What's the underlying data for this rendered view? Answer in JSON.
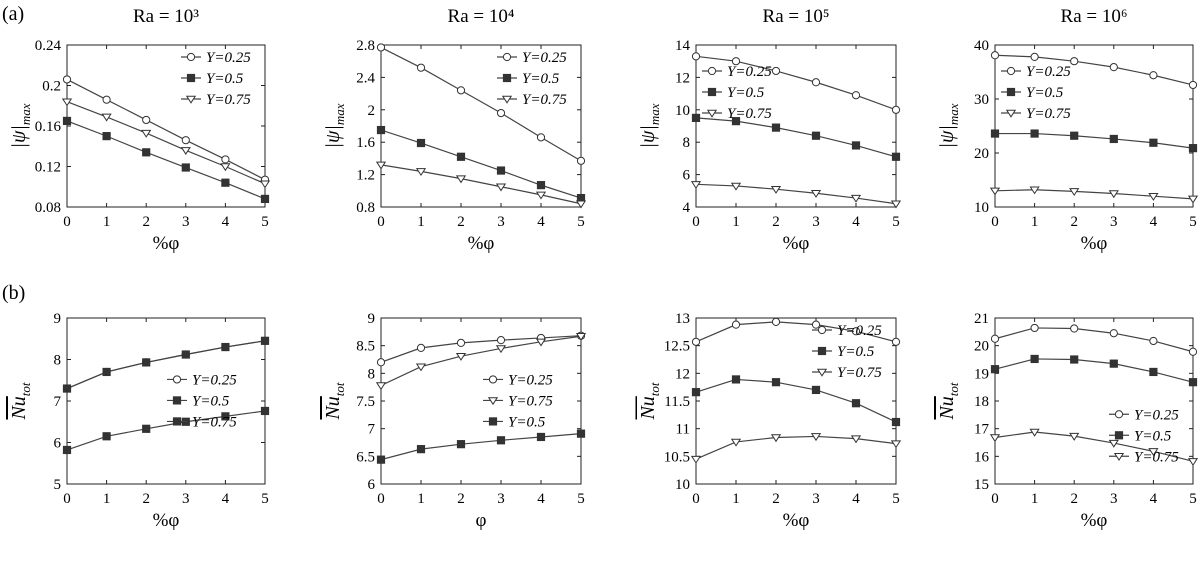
{
  "row_labels": [
    "(a)",
    "(b)"
  ],
  "titles": [
    "Ra = 10³",
    "Ra = 10⁴",
    "Ra = 10⁵",
    "Ra = 10⁶"
  ],
  "chart_data": [
    {
      "type": "line",
      "row": 0,
      "col": 0,
      "title": "Ra = 10³",
      "xlabel": "%φ",
      "ylabel": "|ψ|max",
      "x": [
        0,
        1,
        2,
        3,
        4,
        5
      ],
      "xlim": [
        0,
        5
      ],
      "ylim": [
        0.08,
        0.24
      ],
      "xticks": [
        "0",
        "1",
        "2",
        "3",
        "4",
        "5"
      ],
      "yticks": [
        "0.08",
        "0.12",
        "0.16",
        "0.2",
        "0.24"
      ],
      "legend": "top-right",
      "series": [
        {
          "name": "Y=0.25",
          "marker": "circle",
          "values": [
            0.206,
            0.186,
            0.166,
            0.146,
            0.127,
            0.107
          ]
        },
        {
          "name": "Y=0.5",
          "marker": "square",
          "values": [
            0.165,
            0.15,
            0.134,
            0.119,
            0.104,
            0.088
          ]
        },
        {
          "name": "Y=0.75",
          "marker": "triangle",
          "values": [
            0.184,
            0.169,
            0.153,
            0.136,
            0.12,
            0.103
          ]
        }
      ]
    },
    {
      "type": "line",
      "row": 0,
      "col": 1,
      "title": "Ra = 10⁴",
      "xlabel": "%φ",
      "ylabel": "|ψ|max",
      "x": [
        0,
        1,
        2,
        3,
        4,
        5
      ],
      "xlim": [
        0,
        5
      ],
      "ylim": [
        0.8,
        2.8
      ],
      "xticks": [
        "0",
        "1",
        "2",
        "3",
        "4",
        "5"
      ],
      "yticks": [
        "0.8",
        "1.2",
        "1.6",
        "2",
        "2.4",
        "2.8"
      ],
      "legend": "top-right",
      "series": [
        {
          "name": "Y=0.25",
          "marker": "circle",
          "values": [
            2.77,
            2.52,
            2.24,
            1.96,
            1.66,
            1.37
          ]
        },
        {
          "name": "Y=0.5",
          "marker": "square",
          "values": [
            1.75,
            1.59,
            1.42,
            1.25,
            1.07,
            0.91
          ]
        },
        {
          "name": "Y=0.75",
          "marker": "triangle",
          "values": [
            1.32,
            1.24,
            1.15,
            1.05,
            0.95,
            0.84
          ]
        }
      ]
    },
    {
      "type": "line",
      "row": 0,
      "col": 2,
      "title": "Ra = 10⁵",
      "xlabel": "%φ",
      "ylabel": "|ψ|max",
      "x": [
        0,
        1,
        2,
        3,
        4,
        5
      ],
      "xlim": [
        0,
        5
      ],
      "ylim": [
        4,
        14
      ],
      "xticks": [
        "0",
        "1",
        "2",
        "3",
        "4",
        "5"
      ],
      "yticks": [
        "4",
        "6",
        "8",
        "10",
        "12",
        "14"
      ],
      "legend": "top-left",
      "series": [
        {
          "name": "Y=0.25",
          "marker": "circle",
          "values": [
            13.3,
            13.0,
            12.4,
            11.7,
            10.9,
            10.0
          ]
        },
        {
          "name": "Y=0.5",
          "marker": "square",
          "values": [
            9.5,
            9.3,
            8.9,
            8.4,
            7.8,
            7.1
          ]
        },
        {
          "name": "Y=0.75",
          "marker": "triangle",
          "values": [
            5.4,
            5.3,
            5.1,
            4.85,
            4.55,
            4.2
          ]
        }
      ]
    },
    {
      "type": "line",
      "row": 0,
      "col": 3,
      "title": "Ra = 10⁶",
      "xlabel": "%φ",
      "ylabel": "|ψ|max",
      "x": [
        0,
        1,
        2,
        3,
        4,
        5
      ],
      "xlim": [
        0,
        5
      ],
      "ylim": [
        10,
        40
      ],
      "xticks": [
        "0",
        "1",
        "2",
        "3",
        "4",
        "5"
      ],
      "yticks": [
        "10",
        "20",
        "30",
        "40"
      ],
      "legend": "top-left",
      "series": [
        {
          "name": "Y=0.25",
          "marker": "circle",
          "values": [
            38.1,
            37.8,
            37.0,
            35.9,
            34.4,
            32.6
          ]
        },
        {
          "name": "Y=0.5",
          "marker": "square",
          "values": [
            23.6,
            23.6,
            23.2,
            22.6,
            21.9,
            20.9
          ]
        },
        {
          "name": "Y=0.75",
          "marker": "triangle",
          "values": [
            13.0,
            13.2,
            12.9,
            12.5,
            12.0,
            11.5
          ]
        }
      ]
    },
    {
      "type": "line",
      "row": 1,
      "col": 0,
      "title": "",
      "xlabel": "%φ",
      "ylabel": "Nu tot",
      "x": [
        0,
        1,
        2,
        3,
        4,
        5
      ],
      "xlim": [
        0,
        5
      ],
      "ylim": [
        5,
        9
      ],
      "xticks": [
        "0",
        "1",
        "2",
        "3",
        "4",
        "5"
      ],
      "yticks": [
        "5",
        "6",
        "7",
        "8",
        "9"
      ],
      "legend": "center-right",
      "series": [
        {
          "name": "Y=0.25",
          "marker": "circle",
          "values": [
            7.3,
            7.7,
            7.93,
            8.12,
            8.3,
            8.45
          ]
        },
        {
          "name": "Y=0.5",
          "marker": "square",
          "values": [
            5.82,
            6.15,
            6.33,
            6.5,
            6.63,
            6.76
          ]
        },
        {
          "name": "Y=0.75",
          "marker": "square",
          "values": [
            7.3,
            7.7,
            7.93,
            8.12,
            8.3,
            8.45
          ]
        }
      ]
    },
    {
      "type": "line",
      "row": 1,
      "col": 1,
      "title": "",
      "xlabel": "φ",
      "ylabel": "Nu tot",
      "x": [
        0,
        1,
        2,
        3,
        4,
        5
      ],
      "xlim": [
        0,
        5
      ],
      "ylim": [
        6,
        9
      ],
      "xticks": [
        "0",
        "1",
        "2",
        "3",
        "4",
        "5"
      ],
      "yticks": [
        "6",
        "6.5",
        "7",
        "7.5",
        "8",
        "8.5",
        "9"
      ],
      "legend": "center-right",
      "series": [
        {
          "name": "Y=0.25",
          "marker": "circle",
          "values": [
            8.2,
            8.46,
            8.55,
            8.6,
            8.64,
            8.68
          ]
        },
        {
          "name": "Y=0.75",
          "marker": "triangle",
          "values": [
            7.78,
            8.12,
            8.31,
            8.45,
            8.57,
            8.67
          ]
        },
        {
          "name": "Y=0.5",
          "marker": "square",
          "values": [
            6.44,
            6.63,
            6.72,
            6.79,
            6.85,
            6.91
          ]
        }
      ]
    },
    {
      "type": "line",
      "row": 1,
      "col": 2,
      "title": "",
      "xlabel": "%φ",
      "ylabel": "Nu tot",
      "x": [
        0,
        1,
        2,
        3,
        4,
        5
      ],
      "xlim": [
        0,
        5
      ],
      "ylim": [
        10,
        13
      ],
      "xticks": [
        "0",
        "1",
        "2",
        "3",
        "4",
        "5"
      ],
      "yticks": [
        "10",
        "10.5",
        "11",
        "11.5",
        "12",
        "12.5",
        "13"
      ],
      "legend": "top-right",
      "series": [
        {
          "name": "Y=0.25",
          "marker": "circle",
          "values": [
            12.57,
            12.88,
            12.93,
            12.88,
            12.76,
            12.57
          ]
        },
        {
          "name": "Y=0.5",
          "marker": "square",
          "values": [
            11.66,
            11.89,
            11.84,
            11.7,
            11.46,
            11.12
          ]
        },
        {
          "name": "Y=0.75",
          "marker": "triangle",
          "values": [
            10.45,
            10.76,
            10.84,
            10.86,
            10.82,
            10.73
          ]
        }
      ]
    },
    {
      "type": "line",
      "row": 1,
      "col": 3,
      "title": "",
      "xlabel": "%φ",
      "ylabel": "Nu tot",
      "x": [
        0,
        1,
        2,
        3,
        4,
        5
      ],
      "xlim": [
        0,
        5
      ],
      "ylim": [
        15,
        21
      ],
      "xticks": [
        "0",
        "1",
        "2",
        "3",
        "4",
        "5"
      ],
      "yticks": [
        "15",
        "16",
        "17",
        "18",
        "19",
        "20",
        "21"
      ],
      "legend": "bottom-right",
      "series": [
        {
          "name": "Y=0.25",
          "marker": "circle",
          "values": [
            20.25,
            20.64,
            20.62,
            20.45,
            20.17,
            19.78
          ]
        },
        {
          "name": "Y=0.5",
          "marker": "square",
          "values": [
            19.15,
            19.52,
            19.5,
            19.35,
            19.05,
            18.68
          ]
        },
        {
          "name": "Y=0.75",
          "marker": "triangle",
          "values": [
            16.68,
            16.88,
            16.73,
            16.48,
            16.18,
            15.82
          ]
        }
      ]
    }
  ]
}
